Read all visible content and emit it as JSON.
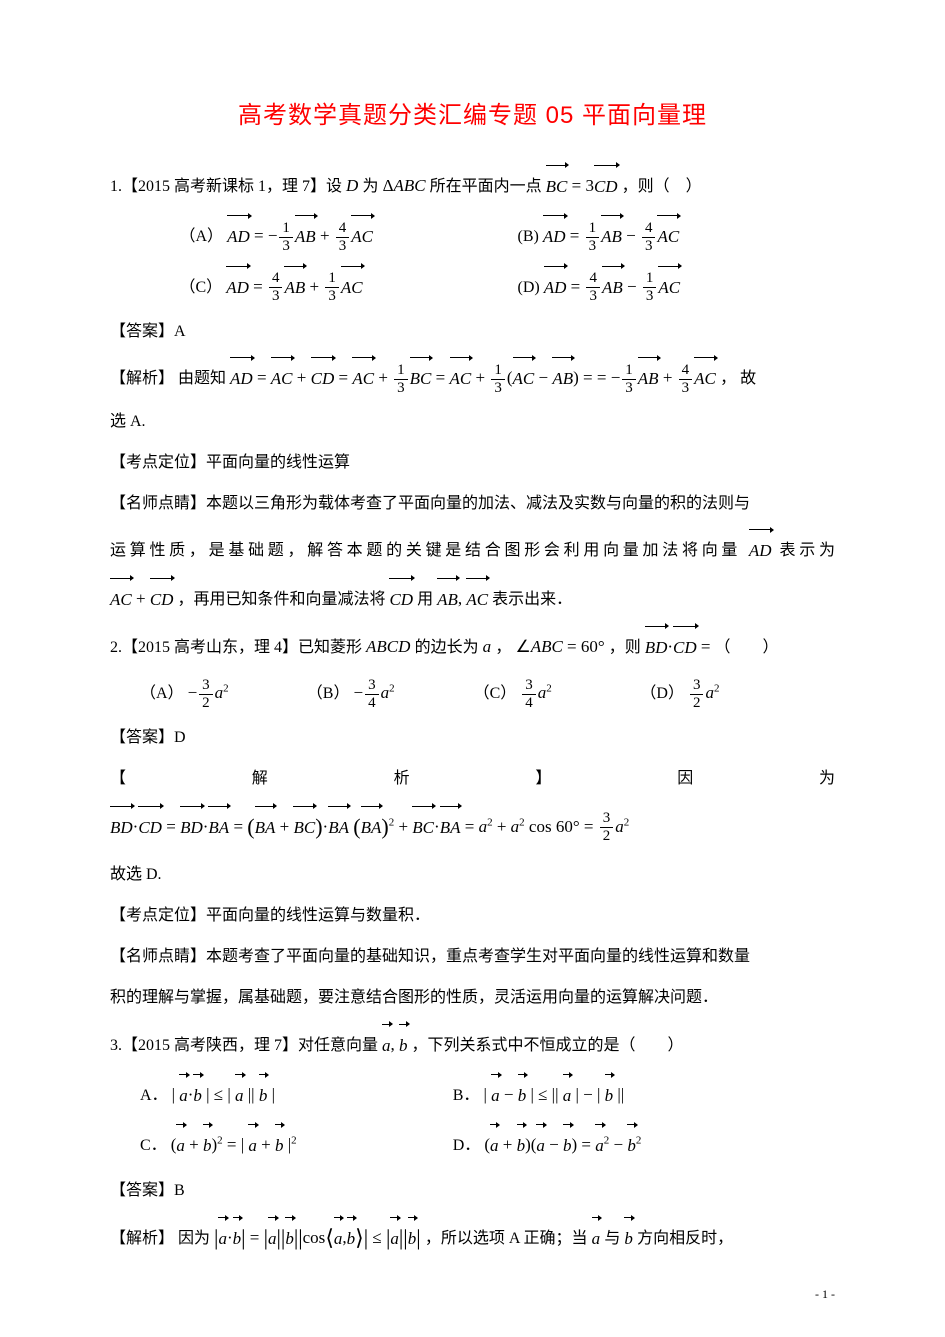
{
  "title": "高考数学真题分类汇编专题 05 平面向量理",
  "p1_intro_pre": "1.【2015 高考新课标 1，理 7】设",
  "p1_intro_mid": "为",
  "p1_intro_post": "所在平面内一点",
  "p1_intro_end": "，则（　）",
  "answer_label": "【答案】",
  "p1_answer": "A",
  "analysis_label": "【解析】",
  "p1_analysis_pre": "由题知",
  "p1_analysis_post": "，  故",
  "p1_select": "选 A.",
  "kaodian_label": "【考点定位】",
  "p1_kaodian": "平面向量的线性运算",
  "mingshi_label": "【名师点睛】",
  "p1_mingshi_1": "本题以三角形为载体考查了平面向量的加法、减法及实数与向量的积的法则与",
  "p1_mingshi_2a": "运算性质，是基础题，解答本题的关键是结合图形会利用向量加法将向量",
  "p1_mingshi_2b": "表示为",
  "p1_mingshi_3a": "，再用已知条件和向量减法将",
  "p1_mingshi_3b": "用",
  "p1_mingshi_3c": "表示出来．",
  "p2_intro_pre": "2.【2015 高考山东，理 4】已知菱形",
  "p2_intro_mid": "的边长为",
  "p2_intro_post": "，",
  "p2_intro_end": "，则",
  "p2_intro_final": "（　　）",
  "p2_answer": "D",
  "p2_analysis_row": [
    "【",
    "解",
    "析",
    "】",
    "因",
    "为"
  ],
  "p2_select": "故选 D.",
  "p2_kaodian": "平面向量的线性运算与数量积．",
  "p2_mingshi_1": "本题考查了平面向量的基础知识，重点考查学生对平面向量的线性运算和数量",
  "p2_mingshi_2": "积的理解与掌握，属基础题，要注意结合图形的性质，灵活运用向量的运算解决问题．",
  "p3_intro_pre": "3.【2015 高考陕西，理 7】对任意向量",
  "p3_intro_post": "，下列关系式中不恒成立的是（　　）",
  "p3_answer": "B",
  "p3_analysis_pre": "因为",
  "p3_analysis_mid": "，所以选项 A 正确；当",
  "p3_analysis_post": "方向相反时，",
  "opt_A": "（A）",
  "opt_B": "（B）",
  "opt_C": "（C）",
  "opt_D": "（D）",
  "opt_a_dot": "A．",
  "opt_b_dot": "B．",
  "opt_c_dot": "C．",
  "opt_d_dot": "D．",
  "with": "与",
  "footer": "- 1 -"
}
